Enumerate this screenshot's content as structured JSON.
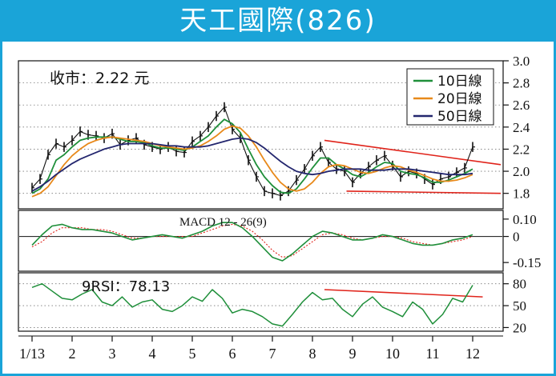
{
  "banner": {
    "title": "天工國際(826)"
  },
  "price_note": {
    "text": "收市：2.22 元"
  },
  "macd_label": {
    "text": "MACD 12 - 26(9)"
  },
  "rsi_label": {
    "text": "9RSI：78.13"
  },
  "colors": {
    "banner": "#1aa4d8",
    "ma10": "#1f8f3a",
    "ma20": "#e8891a",
    "ma50": "#23266e",
    "price_bars": "#111111",
    "trendlines": "#e0241b",
    "macd_line": "#1f8f3a",
    "signal_line": "#e0241b",
    "rsi_line": "#1f8f3a"
  },
  "chart_data": [
    {
      "type": "line",
      "panel": "price",
      "x_ticks": [
        "1/13",
        "2",
        "3",
        "4",
        "5",
        "6",
        "7",
        "8",
        "9",
        "10",
        "11",
        "12"
      ],
      "y_ticks": [
        "3.0",
        "2.8",
        "2.6",
        "2.4",
        "2.2",
        "2.0",
        "1.8"
      ],
      "ylim": [
        1.66,
        3.0
      ],
      "grid": true,
      "legend": {
        "position": "top-right",
        "entries": [
          "10日線",
          "20日線",
          "50日線"
        ]
      },
      "close_price": 2.22,
      "series": [
        {
          "name": "price",
          "x": [
            1,
            1.2,
            1.4,
            1.6,
            1.8,
            2,
            2.2,
            2.4,
            2.6,
            2.8,
            3,
            3.2,
            3.4,
            3.6,
            3.8,
            4,
            4.2,
            4.4,
            4.6,
            4.8,
            5,
            5.2,
            5.4,
            5.6,
            5.8,
            6,
            6.2,
            6.4,
            6.6,
            6.8,
            7,
            7.2,
            7.4,
            7.6,
            7.8,
            8,
            8.2,
            8.4,
            8.6,
            8.8,
            9,
            9.2,
            9.4,
            9.6,
            9.8,
            10,
            10.2,
            10.4,
            10.6,
            10.8,
            11,
            11.2,
            11.4,
            11.6,
            11.8,
            12
          ],
          "values": [
            1.85,
            1.93,
            2.15,
            2.25,
            2.22,
            2.28,
            2.36,
            2.33,
            2.32,
            2.3,
            2.34,
            2.24,
            2.28,
            2.3,
            2.24,
            2.22,
            2.2,
            2.22,
            2.18,
            2.17,
            2.27,
            2.32,
            2.4,
            2.5,
            2.58,
            2.38,
            2.3,
            2.1,
            1.95,
            1.82,
            1.8,
            1.78,
            1.82,
            1.92,
            2.02,
            2.14,
            2.22,
            2.08,
            2.02,
            2.0,
            1.9,
            1.98,
            2.04,
            2.1,
            2.14,
            2.05,
            1.95,
            2.0,
            1.98,
            1.93,
            1.88,
            1.93,
            1.95,
            1.99,
            2.03,
            2.22
          ]
        },
        {
          "name": "10日線",
          "x": [
            1,
            1.2,
            1.4,
            1.6,
            1.8,
            2,
            2.2,
            2.4,
            2.6,
            2.8,
            3,
            3.2,
            3.4,
            3.6,
            3.8,
            4,
            4.2,
            4.4,
            4.6,
            4.8,
            5,
            5.2,
            5.4,
            5.6,
            5.8,
            6,
            6.2,
            6.4,
            6.6,
            6.8,
            7,
            7.2,
            7.4,
            7.6,
            7.8,
            8,
            8.2,
            8.4,
            8.6,
            8.8,
            9,
            9.2,
            9.4,
            9.6,
            9.8,
            10,
            10.2,
            10.4,
            10.6,
            10.8,
            11,
            11.2,
            11.4,
            11.6,
            11.8,
            12
          ],
          "values": [
            1.8,
            1.84,
            1.93,
            2.1,
            2.15,
            2.22,
            2.28,
            2.3,
            2.31,
            2.31,
            2.31,
            2.29,
            2.27,
            2.27,
            2.26,
            2.23,
            2.21,
            2.21,
            2.2,
            2.19,
            2.22,
            2.27,
            2.32,
            2.4,
            2.47,
            2.43,
            2.35,
            2.2,
            2.06,
            1.95,
            1.87,
            1.81,
            1.8,
            1.84,
            1.93,
            2.03,
            2.12,
            2.12,
            2.06,
            2.02,
            1.97,
            1.95,
            1.99,
            2.04,
            2.08,
            2.07,
            2.0,
            1.98,
            1.97,
            1.94,
            1.9,
            1.9,
            1.92,
            1.95,
            1.98,
            2.02
          ]
        },
        {
          "name": "20日線",
          "x": [
            1,
            1.2,
            1.4,
            1.6,
            1.8,
            2,
            2.2,
            2.4,
            2.6,
            2.8,
            3,
            3.2,
            3.4,
            3.6,
            3.8,
            4,
            4.2,
            4.4,
            4.6,
            4.8,
            5,
            5.2,
            5.4,
            5.6,
            5.8,
            6,
            6.2,
            6.4,
            6.6,
            6.8,
            7,
            7.2,
            7.4,
            7.6,
            7.8,
            8,
            8.2,
            8.4,
            8.6,
            8.8,
            9,
            9.2,
            9.4,
            9.6,
            9.8,
            10,
            10.2,
            10.4,
            10.6,
            10.8,
            11,
            11.2,
            11.4,
            11.6,
            11.8,
            12
          ],
          "values": [
            1.77,
            1.8,
            1.86,
            1.96,
            2.06,
            2.14,
            2.2,
            2.25,
            2.28,
            2.3,
            2.31,
            2.3,
            2.29,
            2.28,
            2.27,
            2.25,
            2.23,
            2.22,
            2.21,
            2.2,
            2.21,
            2.23,
            2.27,
            2.32,
            2.38,
            2.41,
            2.39,
            2.32,
            2.22,
            2.1,
            1.99,
            1.9,
            1.84,
            1.82,
            1.84,
            1.9,
            1.98,
            2.04,
            2.06,
            2.05,
            2.02,
            1.99,
            1.98,
            2.0,
            2.03,
            2.05,
            2.04,
            2.01,
            1.99,
            1.96,
            1.93,
            1.91,
            1.91,
            1.92,
            1.94,
            1.97
          ]
        },
        {
          "name": "50日線",
          "x": [
            1,
            1.2,
            1.4,
            1.6,
            1.8,
            2,
            2.2,
            2.4,
            2.6,
            2.8,
            3,
            3.2,
            3.4,
            3.6,
            3.8,
            4,
            4.2,
            4.4,
            4.6,
            4.8,
            5,
            5.2,
            5.4,
            5.6,
            5.8,
            6,
            6.2,
            6.4,
            6.6,
            6.8,
            7,
            7.2,
            7.4,
            7.6,
            7.8,
            8,
            8.2,
            8.4,
            8.6,
            8.8,
            9,
            9.2,
            9.4,
            9.6,
            9.8,
            10,
            10.2,
            10.4,
            10.6,
            10.8,
            11,
            11.2,
            11.4,
            11.6,
            11.8,
            12
          ],
          "values": [
            1.82,
            1.86,
            1.91,
            1.97,
            2.02,
            2.07,
            2.11,
            2.14,
            2.17,
            2.2,
            2.22,
            2.24,
            2.25,
            2.25,
            2.25,
            2.25,
            2.24,
            2.23,
            2.23,
            2.22,
            2.22,
            2.22,
            2.23,
            2.25,
            2.27,
            2.29,
            2.3,
            2.29,
            2.26,
            2.21,
            2.15,
            2.09,
            2.04,
            2.0,
            1.98,
            1.97,
            1.98,
            2.0,
            2.01,
            2.02,
            2.02,
            2.02,
            2.01,
            2.01,
            2.01,
            2.02,
            2.02,
            2.02,
            2.01,
            2.0,
            1.99,
            1.98,
            1.97,
            1.97,
            1.97,
            1.98
          ]
        }
      ],
      "trendlines": [
        {
          "from": [
            8.3,
            2.28
          ],
          "to": [
            12.7,
            2.06
          ]
        },
        {
          "from": [
            8.85,
            1.82
          ],
          "to": [
            12.7,
            1.8
          ]
        }
      ]
    },
    {
      "type": "line",
      "panel": "macd",
      "title": "MACD 12 - 26(9)",
      "y_ticks": [
        "0.10",
        "0",
        "-0.15"
      ],
      "ylim": [
        -0.2,
        0.15
      ],
      "series": [
        {
          "name": "MACD",
          "x": [
            1,
            1.25,
            1.5,
            1.75,
            2,
            2.25,
            2.5,
            2.75,
            3,
            3.25,
            3.5,
            3.75,
            4,
            4.25,
            4.5,
            4.75,
            5,
            5.25,
            5.5,
            5.75,
            6,
            6.25,
            6.5,
            6.75,
            7,
            7.25,
            7.5,
            7.75,
            8,
            8.25,
            8.5,
            8.75,
            9,
            9.25,
            9.5,
            9.75,
            10,
            10.25,
            10.5,
            10.75,
            11,
            11.25,
            11.5,
            11.75,
            12
          ],
          "values": [
            -0.05,
            0.01,
            0.06,
            0.07,
            0.05,
            0.04,
            0.04,
            0.03,
            0.02,
            0.0,
            -0.02,
            -0.01,
            0.0,
            0.01,
            0.0,
            -0.01,
            0.01,
            0.03,
            0.06,
            0.08,
            0.08,
            0.05,
            0.0,
            -0.06,
            -0.12,
            -0.14,
            -0.1,
            -0.05,
            0.0,
            0.03,
            0.02,
            0.0,
            -0.02,
            -0.02,
            -0.01,
            0.01,
            0.0,
            -0.02,
            -0.04,
            -0.05,
            -0.05,
            -0.04,
            -0.02,
            -0.01,
            0.01
          ]
        },
        {
          "name": "Signal",
          "x": [
            1,
            1.25,
            1.5,
            1.75,
            2,
            2.25,
            2.5,
            2.75,
            3,
            3.25,
            3.5,
            3.75,
            4,
            4.25,
            4.5,
            4.75,
            5,
            5.25,
            5.5,
            5.75,
            6,
            6.25,
            6.5,
            6.75,
            7,
            7.25,
            7.5,
            7.75,
            8,
            8.25,
            8.5,
            8.75,
            9,
            9.25,
            9.5,
            9.75,
            10,
            10.25,
            10.5,
            10.75,
            11,
            11.25,
            11.5,
            11.75,
            12
          ],
          "values": [
            -0.06,
            -0.03,
            0.02,
            0.05,
            0.05,
            0.05,
            0.04,
            0.04,
            0.03,
            0.01,
            -0.01,
            -0.01,
            0.0,
            0.0,
            0.0,
            0.0,
            0.0,
            0.02,
            0.04,
            0.06,
            0.07,
            0.06,
            0.03,
            -0.02,
            -0.08,
            -0.12,
            -0.11,
            -0.07,
            -0.03,
            0.01,
            0.02,
            0.01,
            -0.01,
            -0.02,
            -0.01,
            0.0,
            0.0,
            -0.01,
            -0.03,
            -0.04,
            -0.05,
            -0.04,
            -0.03,
            -0.02,
            0.0
          ]
        }
      ]
    },
    {
      "type": "line",
      "panel": "rsi",
      "title": "9RSI：78.13",
      "y_ticks": [
        "80",
        "50",
        "20"
      ],
      "ylim": [
        15,
        95
      ],
      "series": [
        {
          "name": "RSI",
          "x": [
            1,
            1.25,
            1.5,
            1.75,
            2,
            2.25,
            2.5,
            2.75,
            3,
            3.25,
            3.5,
            3.75,
            4,
            4.25,
            4.5,
            4.75,
            5,
            5.25,
            5.5,
            5.75,
            6,
            6.25,
            6.5,
            6.75,
            7,
            7.25,
            7.5,
            7.75,
            8,
            8.25,
            8.5,
            8.75,
            9,
            9.25,
            9.5,
            9.75,
            10,
            10.25,
            10.5,
            10.75,
            11,
            11.25,
            11.5,
            11.75,
            12
          ],
          "values": [
            75,
            80,
            70,
            60,
            58,
            66,
            72,
            55,
            50,
            62,
            48,
            55,
            58,
            45,
            42,
            50,
            62,
            56,
            72,
            60,
            40,
            45,
            42,
            35,
            25,
            22,
            38,
            55,
            68,
            58,
            60,
            45,
            35,
            52,
            62,
            48,
            42,
            35,
            55,
            45,
            25,
            38,
            60,
            55,
            78
          ]
        }
      ],
      "trendlines": [
        {
          "from": [
            8.3,
            72
          ],
          "to": [
            12.25,
            62
          ]
        }
      ]
    }
  ]
}
